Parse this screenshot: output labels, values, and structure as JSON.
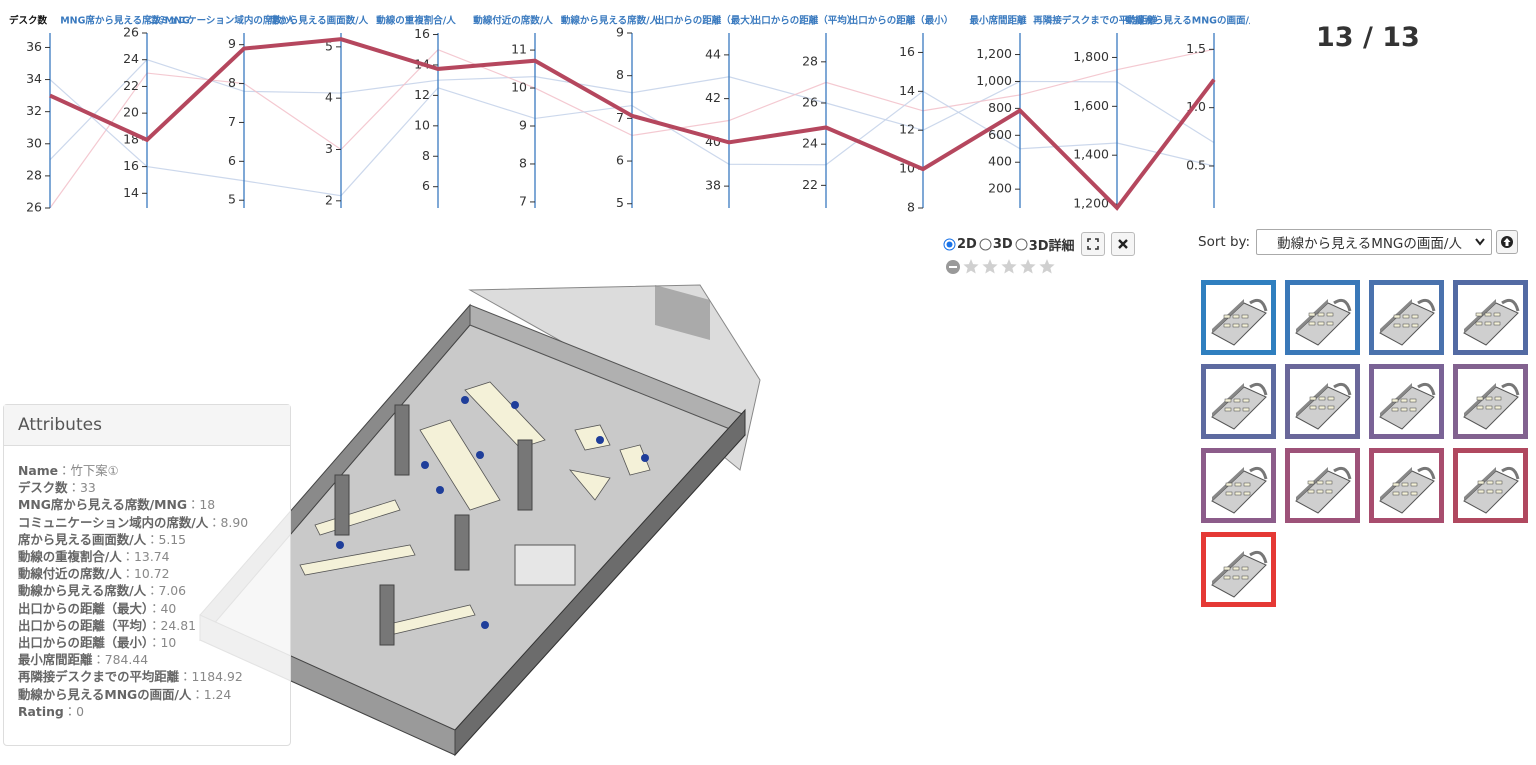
{
  "parallel_chart": {
    "axes": [
      {
        "label": "デスク数",
        "ylim": [
          26,
          36.9
        ],
        "yticks": [
          26,
          28,
          30,
          32,
          34,
          36
        ]
      },
      {
        "label": "MNG席から見える席数/MNG",
        "ylim": [
          12.9,
          26
        ],
        "yticks": [
          14,
          16,
          18,
          20,
          22,
          24,
          26
        ]
      },
      {
        "label": "コミュニケーション域内の席数/人",
        "ylim": [
          4.8,
          9.3
        ],
        "yticks": [
          5,
          6,
          7,
          8,
          9
        ]
      },
      {
        "label": "席から見える画面数/人",
        "ylim": [
          1.86,
          5.27
        ],
        "yticks": [
          2,
          3,
          4,
          5
        ]
      },
      {
        "label": "動線の重複割合/人",
        "ylim": [
          4.6,
          16.1
        ],
        "yticks": [
          6,
          8,
          10,
          12,
          14,
          16
        ]
      },
      {
        "label": "動線付近の席数/人",
        "ylim": [
          6.84,
          11.45
        ],
        "yticks": [
          7,
          8,
          9,
          10,
          11
        ]
      },
      {
        "label": "動線から見える席数/人",
        "ylim": [
          4.9,
          9
        ],
        "yticks": [
          5,
          6,
          7,
          8,
          9
        ]
      },
      {
        "label": "出口からの距離（最大）",
        "ylim": [
          37,
          45
        ],
        "yticks": [
          38,
          40,
          42,
          44
        ]
      },
      {
        "label": "出口からの距離（平均）",
        "ylim": [
          20.9,
          29.4
        ],
        "yticks": [
          22,
          24,
          26,
          28
        ]
      },
      {
        "label": "出口からの距離（最小）",
        "ylim": [
          8,
          17
        ],
        "yticks": [
          8,
          10,
          12,
          14,
          16
        ]
      },
      {
        "label": "最小席間距離",
        "ylim": [
          60,
          1360
        ],
        "yticks": [
          200,
          400,
          600,
          800,
          {
            "value": 1000,
            "label": "1,000"
          },
          {
            "value": 1200,
            "label": "1,200"
          }
        ]
      },
      {
        "label": "再隣接デスクまでの平均距離",
        "ylim": [
          1184,
          1900
        ],
        "yticks": [
          {
            "value": 1200,
            "label": "1,200"
          },
          {
            "value": 1400,
            "label": "1,400"
          },
          {
            "value": 1600,
            "label": "1,600"
          },
          {
            "value": 1800,
            "label": "1,800"
          }
        ]
      },
      {
        "label": "動線から見えるMNGの画面/人",
        "ylim": [
          0.14,
          1.64
        ],
        "yticks": [
          0.5,
          {
            "value": 1,
            "label": "1.0"
          },
          1.5
        ]
      }
    ],
    "others": [
      {
        "color": "#c7d4ea",
        "values": [
          29,
          24,
          7.8,
          4.1,
          13,
          10.3,
          7.6,
          43,
          26,
          12,
          1000,
          1700,
          0.7
        ]
      },
      {
        "color": "#f3c3cc",
        "values": [
          26,
          23,
          8,
          3,
          15,
          10,
          6.6,
          41,
          27,
          13,
          900,
          1750,
          1.5
        ]
      },
      {
        "color": "#c7d4ea",
        "values": [
          34,
          16,
          5.5,
          2.1,
          12.5,
          9.2,
          7.3,
          39,
          23,
          14,
          500,
          1450,
          0.5
        ]
      }
    ],
    "selected": {
      "color": "#b5475e",
      "values": [
        33,
        18,
        8.9,
        5.15,
        13.74,
        10.72,
        7.06,
        40,
        24.81,
        10,
        784.44,
        1184.92,
        1.24
      ]
    }
  },
  "counter": "13 / 13",
  "view_options": [
    "2D",
    "3D",
    "3D詳細"
  ],
  "sort": {
    "label": "Sort by:",
    "selected": "動線から見えるMNGの画面/人"
  },
  "thumbnails": {
    "border_colors": [
      "#2f7fbf",
      "#3a78b8",
      "#4a72ad",
      "#536aa3",
      "#5d6aa0",
      "#6a679a",
      "#7a6396",
      "#82628f",
      "#8c5c8a",
      "#9d5279",
      "#a84d6e",
      "#b0485f",
      "#e53935"
    ]
  },
  "attributes": {
    "title": "Attributes",
    "separator": "：",
    "rows": [
      [
        "Name",
        "竹下案①"
      ],
      [
        "デスク数",
        "33"
      ],
      [
        "MNG席から見える席数/MNG",
        "18"
      ],
      [
        "コミュニケーション域内の席数/人",
        "8.90"
      ],
      [
        "席から見える画面数/人",
        "5.15"
      ],
      [
        "動線の重複割合/人",
        "13.74"
      ],
      [
        "動線付近の席数/人",
        "10.72"
      ],
      [
        "動線から見える席数/人",
        "7.06"
      ],
      [
        "出口からの距離（最大）",
        "40"
      ],
      [
        "出口からの距離（平均）",
        "24.81"
      ],
      [
        "出口からの距離（最小）",
        "10"
      ],
      [
        "最小席間距離",
        "784.44"
      ],
      [
        "再隣接デスクまでの平均距離",
        "1184.92"
      ],
      [
        "動線から見えるMNGの画面/人",
        "1.24"
      ],
      [
        "Rating",
        "0"
      ]
    ]
  }
}
